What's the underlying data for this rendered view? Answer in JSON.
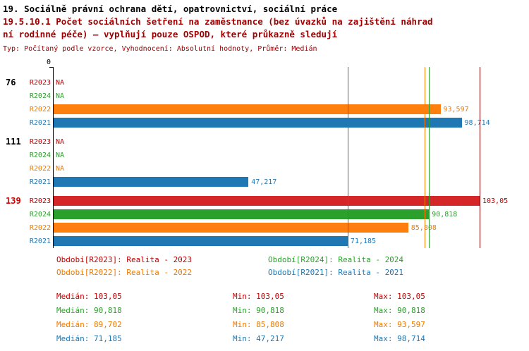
{
  "header": {
    "title_line1": "19. Sociálně právní ochrana dětí, opatrovnictví, sociální práce",
    "title_line2": "19.5.10.1 Počet sociálních šetření na zaměstnance (bez úvazků na zajištění náhrad",
    "title_line3": "ní rodinné péče) – vyplňují pouze OSPOD, které průkazně sledují",
    "meta": "Typ: Počítaný podle vzorce, Vyhodnocení: Absolutní hodnoty, Průměr: Medián"
  },
  "chart_data": {
    "type": "bar",
    "orientation": "horizontal",
    "axis_origin_label": "0",
    "axis_max": 103.05,
    "series_colors": {
      "R2023": {
        "bar": "#d62728",
        "text": "#c00000"
      },
      "R2024": {
        "bar": "#2ca02c",
        "text": "#2ca02c"
      },
      "R2022": {
        "bar": "#ff7f0e",
        "text": "#ef7a00"
      },
      "R2021": {
        "bar": "#1f77b4",
        "text": "#1f77b4"
      }
    },
    "groups": [
      {
        "label": "76",
        "label_color": "#000000",
        "rows": [
          {
            "series": "R2023",
            "value": null,
            "display": "NA"
          },
          {
            "series": "R2024",
            "value": null,
            "display": "NA"
          },
          {
            "series": "R2022",
            "value": 93.597,
            "display": "93,597"
          },
          {
            "series": "R2021",
            "value": 98.714,
            "display": "98,714"
          }
        ]
      },
      {
        "label": "111",
        "label_color": "#000000",
        "rows": [
          {
            "series": "R2023",
            "value": null,
            "display": "NA"
          },
          {
            "series": "R2024",
            "value": null,
            "display": "NA"
          },
          {
            "series": "R2022",
            "value": null,
            "display": "NA"
          },
          {
            "series": "R2021",
            "value": 47.217,
            "display": "47,217"
          }
        ]
      },
      {
        "label": "139",
        "label_color": "#d40000",
        "rows": [
          {
            "series": "R2023",
            "value": 103.05,
            "display": "103,05"
          },
          {
            "series": "R2024",
            "value": 90.818,
            "display": "90,818"
          },
          {
            "series": "R2022",
            "value": 85.808,
            "display": "85,808"
          },
          {
            "series": "R2021",
            "value": 71.185,
            "display": "71,185"
          }
        ]
      }
    ],
    "median_lines": [
      {
        "series": "R2021",
        "value": 71.185,
        "color": "#1f77b4"
      },
      {
        "series": "R2022",
        "value": 89.702,
        "color": "#ff7f0e"
      },
      {
        "series": "R2024",
        "value": 90.818,
        "color": "#2ca02c"
      },
      {
        "series": "R2023",
        "value": 103.05,
        "color": "#8b0000"
      }
    ]
  },
  "legend": {
    "items": [
      {
        "label": "Období[R2023]: Realita - 2023",
        "color": "#c00000"
      },
      {
        "label": "Období[R2024]: Realita - 2024",
        "color": "#2ca02c"
      },
      {
        "label": "Období[R2022]: Realita - 2022",
        "color": "#ef7a00"
      },
      {
        "label": "Období[R2021]: Realita - 2021",
        "color": "#1f77b4"
      }
    ]
  },
  "stats": {
    "rows": [
      {
        "series": "R2023",
        "color": "#c00000",
        "median": "Medián: 103,05",
        "min": "Min: 103,05",
        "max": "Max: 103,05"
      },
      {
        "series": "R2024",
        "color": "#2ca02c",
        "median": "Medián: 90,818",
        "min": "Min: 90,818",
        "max": "Max: 90,818"
      },
      {
        "series": "R2022",
        "color": "#ef7a00",
        "median": "Medián: 89,702",
        "min": "Min: 85,808",
        "max": "Max: 93,597"
      },
      {
        "series": "R2021",
        "color": "#1f77b4",
        "median": "Medián: 71,185",
        "min": "Min: 47,217",
        "max": "Max: 98,714"
      }
    ]
  }
}
